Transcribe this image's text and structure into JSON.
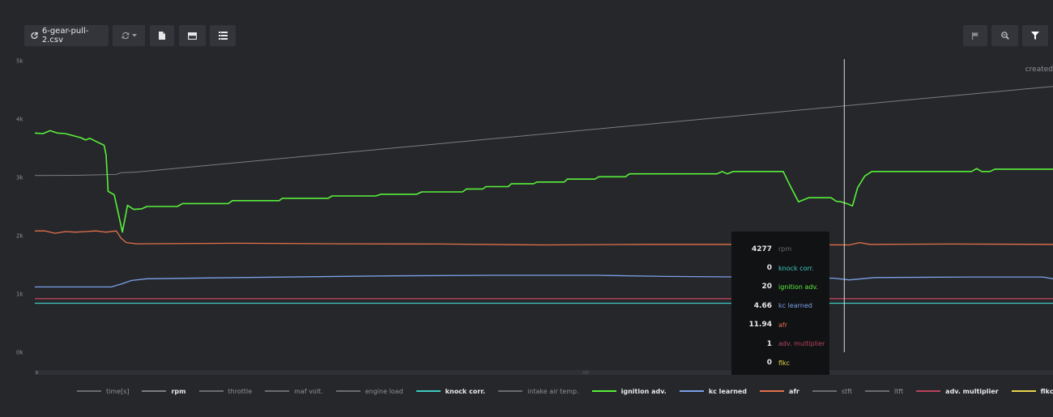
{
  "toolbar": {
    "file_name": "6-gear-pull-2.csv"
  },
  "annotation": "created",
  "colors": {
    "rpm": "#7c7d81",
    "knock": "#3ec9c0",
    "ignition": "#58f03a",
    "kc": "#7aa0e6",
    "afr": "#e2714a",
    "adv": "#b8435d",
    "flkc": "#e8d44d",
    "grey": "#6a6c70"
  },
  "tooltip": {
    "rows": [
      {
        "value": "4277",
        "name": "rpm",
        "color": "#6a6c70"
      },
      {
        "value": "0",
        "name": "knock corr.",
        "color": "#3ec9c0"
      },
      {
        "value": "20",
        "name": "ignition adv.",
        "color": "#58f03a"
      },
      {
        "value": "4.66",
        "name": "kc learned",
        "color": "#7aa0e6"
      },
      {
        "value": "11.94",
        "name": "afr",
        "color": "#e2714a"
      },
      {
        "value": "1",
        "name": "adv. multiplier",
        "color": "#b8435d"
      },
      {
        "value": "0",
        "name": "flkc",
        "color": "#e8d44d"
      }
    ]
  },
  "chart_data": {
    "type": "line",
    "x_range": [
      0,
      100
    ],
    "ylim": [
      0,
      5000
    ],
    "yticks": [
      "0k",
      "1k",
      "2k",
      "3k",
      "4k",
      "5k"
    ],
    "cursor_x": 79.5,
    "legend": [
      {
        "name": "time[s]",
        "color": "#6a6c70",
        "active": false
      },
      {
        "name": "rpm",
        "color": "#7c7d81",
        "active": true
      },
      {
        "name": "throttle",
        "color": "#6a6c70",
        "active": false
      },
      {
        "name": "maf volt.",
        "color": "#6a6c70",
        "active": false
      },
      {
        "name": "engine load",
        "color": "#6a6c70",
        "active": false
      },
      {
        "name": "knock corr.",
        "color": "#3ec9c0",
        "active": true
      },
      {
        "name": "intake air temp.",
        "color": "#6a6c70",
        "active": false
      },
      {
        "name": "ignition adv.",
        "color": "#58f03a",
        "active": true
      },
      {
        "name": "kc learned",
        "color": "#7aa0e6",
        "active": true
      },
      {
        "name": "afr",
        "color": "#e2714a",
        "active": true
      },
      {
        "name": "stft",
        "color": "#6a6c70",
        "active": false
      },
      {
        "name": "ltft",
        "color": "#6a6c70",
        "active": false
      },
      {
        "name": "adv. multiplier",
        "color": "#b8435d",
        "active": true
      },
      {
        "name": "flkc",
        "color": "#e8d44d",
        "active": true
      },
      {
        "name": "",
        "color": "#6a6c70",
        "active": false
      }
    ],
    "series": [
      {
        "key": "rpm",
        "color": "#7c7d81",
        "points": [
          [
            0,
            3030
          ],
          [
            4,
            3035
          ],
          [
            8,
            3050
          ],
          [
            8.5,
            3080
          ],
          [
            10,
            3090
          ],
          [
            100,
            4560
          ]
        ]
      },
      {
        "key": "ignition",
        "color": "#58f03a",
        "points": [
          [
            0,
            3760
          ],
          [
            0.8,
            3750
          ],
          [
            1.5,
            3800
          ],
          [
            2.2,
            3760
          ],
          [
            3,
            3750
          ],
          [
            4.5,
            3680
          ],
          [
            5,
            3640
          ],
          [
            5.4,
            3670
          ],
          [
            6.2,
            3600
          ],
          [
            6.8,
            3550
          ],
          [
            7,
            3380
          ],
          [
            7.2,
            2760
          ],
          [
            7.8,
            2700
          ],
          [
            8.2,
            2380
          ],
          [
            8.6,
            2060
          ],
          [
            9.1,
            2520
          ],
          [
            9.7,
            2450
          ],
          [
            10.5,
            2460
          ],
          [
            11,
            2500
          ],
          [
            14,
            2500
          ],
          [
            14.5,
            2550
          ],
          [
            19,
            2550
          ],
          [
            19.4,
            2600
          ],
          [
            24,
            2600
          ],
          [
            24.3,
            2640
          ],
          [
            28.8,
            2640
          ],
          [
            29.2,
            2680
          ],
          [
            33.5,
            2680
          ],
          [
            34,
            2710
          ],
          [
            37.5,
            2710
          ],
          [
            38,
            2750
          ],
          [
            42,
            2750
          ],
          [
            42.4,
            2800
          ],
          [
            44,
            2800
          ],
          [
            44.3,
            2840
          ],
          [
            46.5,
            2840
          ],
          [
            46.8,
            2890
          ],
          [
            49,
            2890
          ],
          [
            49.3,
            2920
          ],
          [
            52,
            2920
          ],
          [
            52.3,
            2970
          ],
          [
            55,
            2970
          ],
          [
            55.4,
            3010
          ],
          [
            58,
            3010
          ],
          [
            58.4,
            3060
          ],
          [
            67,
            3060
          ],
          [
            67.5,
            3100
          ],
          [
            68,
            3060
          ],
          [
            68.6,
            3100
          ],
          [
            73.5,
            3100
          ],
          [
            74.2,
            2850
          ],
          [
            75,
            2580
          ],
          [
            76,
            2650
          ],
          [
            78.2,
            2650
          ],
          [
            78.7,
            2590
          ],
          [
            79.2,
            2580
          ],
          [
            79.9,
            2540
          ],
          [
            80.3,
            2510
          ],
          [
            80.8,
            2820
          ],
          [
            81.5,
            3020
          ],
          [
            82.2,
            3100
          ],
          [
            92,
            3100
          ],
          [
            92.5,
            3150
          ],
          [
            93,
            3100
          ],
          [
            93.8,
            3100
          ],
          [
            94.3,
            3140
          ],
          [
            100,
            3140
          ]
        ]
      },
      {
        "key": "afr",
        "color": "#e2714a",
        "points": [
          [
            0,
            2080
          ],
          [
            1,
            2080
          ],
          [
            2,
            2040
          ],
          [
            3,
            2070
          ],
          [
            4,
            2060
          ],
          [
            5,
            2070
          ],
          [
            6,
            2080
          ],
          [
            7,
            2060
          ],
          [
            8,
            2080
          ],
          [
            8.5,
            1950
          ],
          [
            9,
            1880
          ],
          [
            10,
            1860
          ],
          [
            20,
            1870
          ],
          [
            30,
            1860
          ],
          [
            40,
            1855
          ],
          [
            50,
            1840
          ],
          [
            60,
            1850
          ],
          [
            70,
            1850
          ],
          [
            80,
            1840
          ],
          [
            81,
            1880
          ],
          [
            82,
            1850
          ],
          [
            90,
            1855
          ],
          [
            100,
            1850
          ]
        ]
      },
      {
        "key": "kc",
        "color": "#7aa0e6",
        "points": [
          [
            0,
            1120
          ],
          [
            7.5,
            1120
          ],
          [
            8.5,
            1170
          ],
          [
            9.5,
            1230
          ],
          [
            11,
            1260
          ],
          [
            20,
            1280
          ],
          [
            35,
            1310
          ],
          [
            45,
            1320
          ],
          [
            55,
            1320
          ],
          [
            62,
            1300
          ],
          [
            70,
            1290
          ],
          [
            78.5,
            1270
          ],
          [
            80,
            1240
          ],
          [
            81.2,
            1260
          ],
          [
            82.5,
            1280
          ],
          [
            92,
            1290
          ],
          [
            99,
            1290
          ],
          [
            100,
            1260
          ]
        ]
      },
      {
        "key": "adv",
        "color": "#b8435d",
        "points": [
          [
            0,
            920
          ],
          [
            100,
            920
          ]
        ]
      },
      {
        "key": "knock",
        "color": "#3ec9c0",
        "points": [
          [
            0,
            840
          ],
          [
            100,
            840
          ]
        ]
      }
    ]
  }
}
